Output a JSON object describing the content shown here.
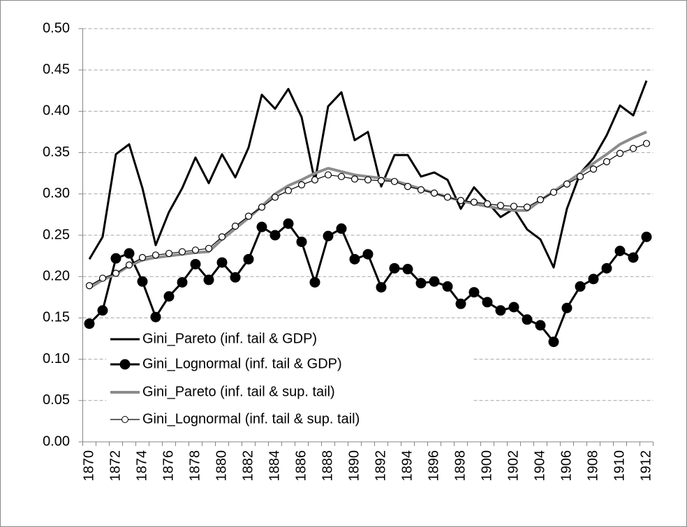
{
  "chart_data": {
    "type": "line",
    "categories": [
      "1870",
      null,
      "1872",
      null,
      "1874",
      null,
      "1876",
      null,
      "1878",
      null,
      "1880",
      null,
      "1882",
      null,
      "1884",
      null,
      "1886",
      null,
      "1888",
      null,
      "1890",
      null,
      "1892",
      null,
      "1894",
      null,
      "1896",
      null,
      "1898",
      null,
      "1900",
      null,
      "1902",
      null,
      "1904",
      null,
      "1906",
      null,
      "1908",
      null,
      "1910",
      null,
      "1912"
    ],
    "series": [
      {
        "name": "Gini_Pareto (inf. tail & GDP)",
        "color": "#000000",
        "marker": "none",
        "width": 3,
        "values": [
          0.221,
          0.248,
          0.348,
          0.36,
          0.307,
          0.238,
          0.278,
          0.307,
          0.344,
          0.313,
          0.348,
          0.32,
          0.356,
          0.42,
          0.403,
          0.427,
          0.393,
          0.315,
          0.406,
          0.423,
          0.365,
          0.375,
          0.309,
          0.347,
          0.347,
          0.321,
          0.326,
          0.317,
          0.282,
          0.308,
          0.29,
          0.272,
          0.282,
          0.257,
          0.245,
          0.211,
          0.282,
          0.325,
          0.343,
          0.371,
          0.407,
          0.395,
          0.437
        ]
      },
      {
        "name": "Gini_Lognormal (inf. tail & GDP)",
        "color": "#000000",
        "marker": "filled",
        "width": 3,
        "values": [
          0.143,
          0.159,
          0.222,
          0.228,
          0.194,
          0.151,
          0.176,
          0.193,
          0.215,
          0.196,
          0.217,
          0.199,
          0.221,
          0.26,
          0.25,
          0.264,
          0.242,
          0.193,
          0.249,
          0.258,
          0.221,
          0.227,
          0.187,
          0.21,
          0.209,
          0.192,
          0.194,
          0.188,
          0.167,
          0.181,
          0.169,
          0.159,
          0.163,
          0.148,
          0.141,
          0.121,
          0.162,
          0.188,
          0.197,
          0.21,
          0.231,
          0.223,
          0.248
        ]
      },
      {
        "name": "Gini_Pareto (inf. tail & sup. tail)",
        "color": "#8c8c8c",
        "marker": "none",
        "width": 4,
        "values": [
          0.186,
          0.196,
          0.203,
          0.213,
          0.22,
          0.223,
          0.225,
          0.227,
          0.229,
          0.23,
          0.245,
          0.258,
          0.271,
          0.285,
          0.3,
          0.31,
          0.317,
          0.325,
          0.331,
          0.327,
          0.323,
          0.321,
          0.319,
          0.316,
          0.311,
          0.306,
          0.301,
          0.296,
          0.292,
          0.288,
          0.285,
          0.282,
          0.28,
          0.28,
          0.292,
          0.303,
          0.314,
          0.325,
          0.337,
          0.348,
          0.36,
          0.368,
          0.375
        ]
      },
      {
        "name": "Gini_Lognormal (inf. tail & sup. tail)",
        "color": "#000000",
        "marker": "open",
        "width": 1.2,
        "values": [
          0.189,
          0.198,
          0.204,
          0.214,
          0.223,
          0.226,
          0.228,
          0.23,
          0.232,
          0.234,
          0.248,
          0.261,
          0.273,
          0.284,
          0.296,
          0.304,
          0.311,
          0.317,
          0.323,
          0.321,
          0.318,
          0.317,
          0.316,
          0.315,
          0.309,
          0.305,
          0.301,
          0.296,
          0.292,
          0.29,
          0.288,
          0.286,
          0.285,
          0.284,
          0.293,
          0.302,
          0.312,
          0.321,
          0.33,
          0.339,
          0.349,
          0.355,
          0.361
        ]
      }
    ],
    "ylim": [
      0,
      0.5
    ],
    "yticks": [
      {
        "value": 0,
        "label": "0.00"
      },
      {
        "value": 0.05,
        "label": "0.05"
      },
      {
        "value": 0.1,
        "label": "0.10"
      },
      {
        "value": 0.15,
        "label": "0.15"
      },
      {
        "value": 0.2,
        "label": "0.20"
      },
      {
        "value": 0.25,
        "label": "0.25"
      },
      {
        "value": 0.3,
        "label": "0.30"
      },
      {
        "value": 0.35,
        "label": "0.35"
      },
      {
        "value": 0.4,
        "label": "0.40"
      },
      {
        "value": 0.45,
        "label": "0.45"
      },
      {
        "value": 0.5,
        "label": "0.50"
      }
    ],
    "grid": true,
    "legend": "lower left"
  }
}
